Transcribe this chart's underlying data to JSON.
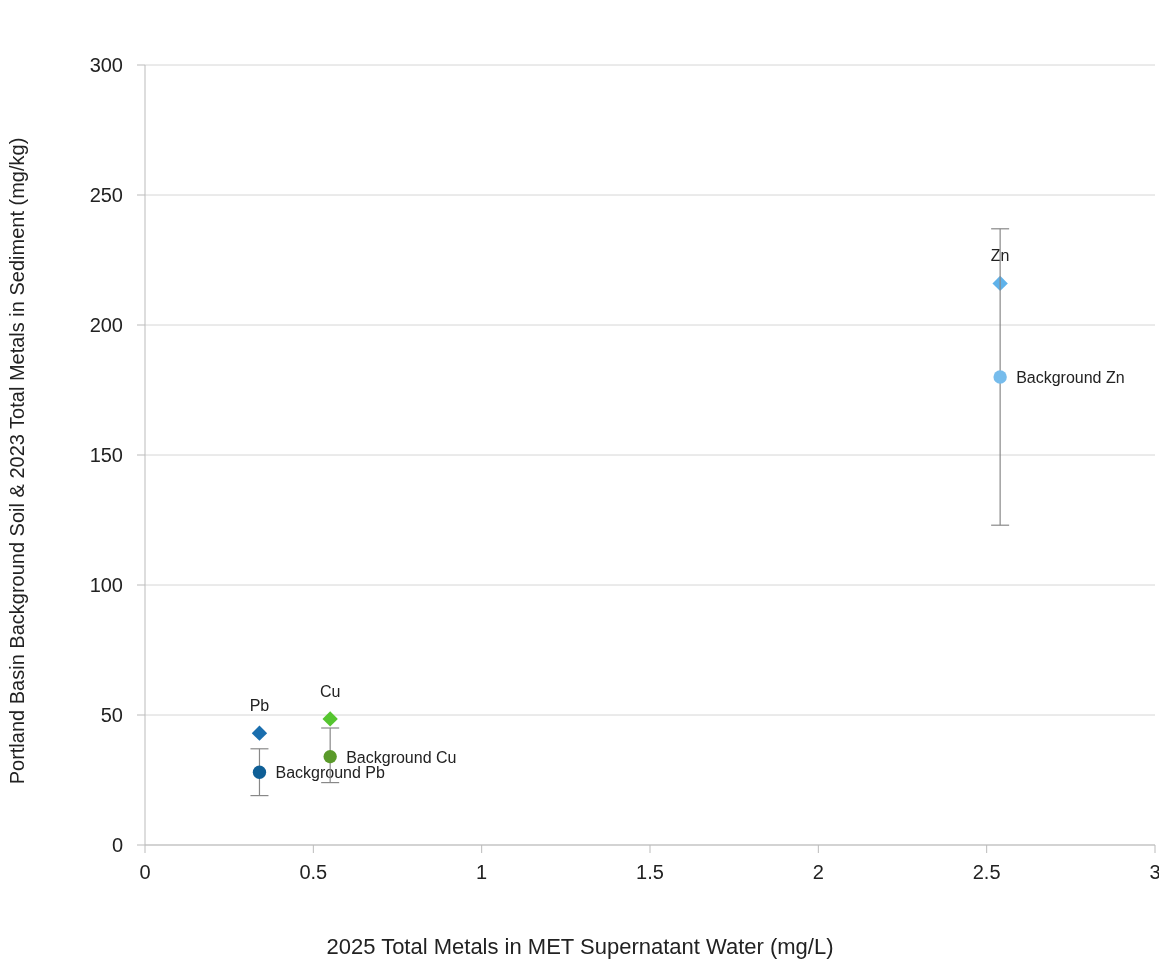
{
  "chart_data": {
    "type": "scatter",
    "xlabel": "2025 Total Metals in MET Supernatant Water (mg/L)",
    "ylabel": "Portland Basin Background Soil & 2023 Total Metals in Sediment (mg/kg)",
    "xlim": [
      0,
      3
    ],
    "xticks": [
      0,
      0.5,
      1,
      1.5,
      2,
      2.5,
      3
    ],
    "ylim": [
      0,
      300
    ],
    "yticks": [
      0,
      50,
      100,
      150,
      200,
      250,
      300
    ],
    "grid": "y",
    "series": [
      {
        "name": "Pb",
        "color": "#1a6eae",
        "marker": "diamond",
        "x": [
          0.34
        ],
        "values": [
          43
        ]
      },
      {
        "name": "Background Pb",
        "color": "#0f5f96",
        "marker": "circle",
        "x": [
          0.34
        ],
        "values": [
          28
        ],
        "errors": [
          [
            19,
            37
          ]
        ]
      },
      {
        "name": "Cu",
        "color": "#55c52f",
        "marker": "diamond",
        "x": [
          0.55
        ],
        "values": [
          48.5
        ]
      },
      {
        "name": "Background Cu",
        "color": "#5a9a2a",
        "marker": "circle",
        "x": [
          0.55
        ],
        "values": [
          34
        ],
        "errors": [
          [
            24,
            45
          ]
        ]
      },
      {
        "name": "Zn",
        "color": "#5fb2ea",
        "marker": "diamond",
        "x": [
          2.54
        ],
        "values": [
          216
        ]
      },
      {
        "name": "Background Zn",
        "color": "#76bcec",
        "marker": "circle",
        "x": [
          2.54
        ],
        "values": [
          180
        ],
        "errors": [
          [
            123,
            237
          ]
        ]
      }
    ]
  }
}
